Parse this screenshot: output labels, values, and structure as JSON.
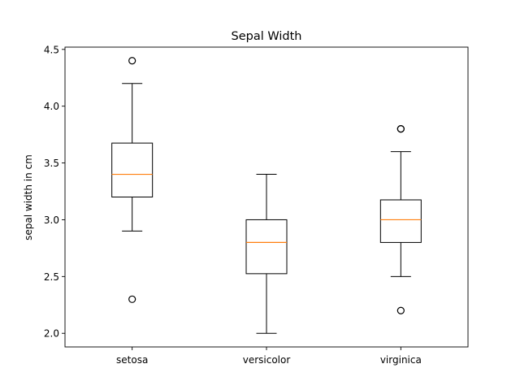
{
  "chart_data": {
    "type": "box",
    "title": "Sepal Width",
    "ylabel": "sepal width in cm",
    "xlabel": "",
    "ylim": [
      1.88,
      4.52
    ],
    "yticks": [
      2.0,
      2.5,
      3.0,
      3.5,
      4.0,
      4.5
    ],
    "ytick_labels": [
      "2.0",
      "2.5",
      "3.0",
      "3.5",
      "4.0",
      "4.5"
    ],
    "grid": false,
    "categories": [
      "setosa",
      "versicolor",
      "virginica"
    ],
    "boxes": [
      {
        "whislo": 2.9,
        "q1": 3.2,
        "med": 3.4,
        "q3": 3.675,
        "whishi": 4.2,
        "fliers": [
          4.4,
          2.3
        ]
      },
      {
        "whislo": 2.0,
        "q1": 2.525,
        "med": 2.8,
        "q3": 3.0,
        "whishi": 3.4,
        "fliers": []
      },
      {
        "whislo": 2.5,
        "q1": 2.8,
        "med": 3.0,
        "q3": 3.175,
        "whishi": 3.6,
        "fliers": [
          3.8,
          3.8,
          2.2
        ]
      }
    ],
    "colors": {
      "box": "#000000",
      "median": "#ff7f0e",
      "flier": "#000000"
    }
  }
}
